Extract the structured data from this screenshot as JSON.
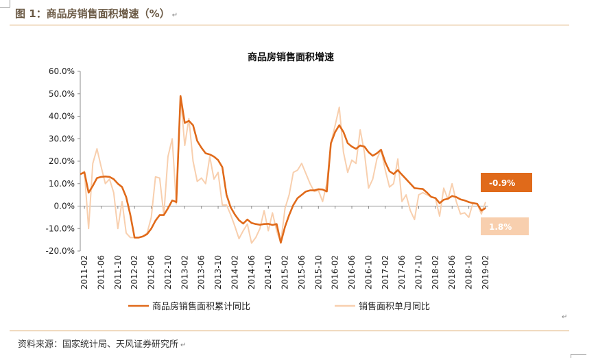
{
  "figure_title": "图 1：商品房销售面积增速（%）",
  "return_mark": "↵",
  "source": "资料来源：国家统计局、天风证券研究所",
  "colors": {
    "cumulative": "#e06a1a",
    "monthly": "#f8cfae",
    "accent_rule": "#d9a15e"
  },
  "chart_data": {
    "type": "line",
    "title": "商品房销售面积增速",
    "xlabel": "",
    "ylabel": "",
    "ylim": [
      -20,
      60
    ],
    "yticks": [
      "60.0%",
      "50.0%",
      "40.0%",
      "30.0%",
      "20.0%",
      "10.0%",
      "0.0%",
      "-10.0%",
      "-20.0%"
    ],
    "xtick_labels": [
      "2011-02",
      "2011-06",
      "2011-10",
      "2012-02",
      "2012-06",
      "2012-10",
      "2013-02",
      "2013-06",
      "2013-10",
      "2014-02",
      "2014-06",
      "2014-10",
      "2015-02",
      "2015-06",
      "2015-10",
      "2016-02",
      "2016-06",
      "2016-10",
      "2017-02",
      "2017-06",
      "2017-10",
      "2018-02",
      "2018-06",
      "2018-10",
      "2019-02"
    ],
    "grid": false,
    "legend_position": "bottom",
    "series": [
      {
        "name": "商品房销售面积累计同比",
        "values": [
          [
            2011.083,
            14.2
          ],
          [
            2011.167,
            15.0
          ],
          [
            2011.25,
            6.0
          ],
          [
            2011.333,
            9.0
          ],
          [
            2011.417,
            12.5
          ],
          [
            2011.5,
            13.0
          ],
          [
            2011.583,
            13.2
          ],
          [
            2011.667,
            13.0
          ],
          [
            2011.75,
            12.0
          ],
          [
            2011.833,
            10.0
          ],
          [
            2011.917,
            8.5
          ],
          [
            2012.0,
            4.0
          ],
          [
            2012.083,
            -4.0
          ],
          [
            2012.167,
            -14.0
          ],
          [
            2012.25,
            -14.0
          ],
          [
            2012.333,
            -13.5
          ],
          [
            2012.417,
            -12.5
          ],
          [
            2012.5,
            -10.0
          ],
          [
            2012.583,
            -6.5
          ],
          [
            2012.667,
            -4.0
          ],
          [
            2012.75,
            -4.0
          ],
          [
            2012.833,
            -1.0
          ],
          [
            2012.917,
            2.5
          ],
          [
            2013.0,
            1.8
          ],
          [
            2013.083,
            49.0
          ],
          [
            2013.167,
            37.0
          ],
          [
            2013.25,
            38.0
          ],
          [
            2013.333,
            36.0
          ],
          [
            2013.417,
            29.0
          ],
          [
            2013.5,
            26.0
          ],
          [
            2013.583,
            23.5
          ],
          [
            2013.667,
            23.0
          ],
          [
            2013.75,
            22.0
          ],
          [
            2013.833,
            20.5
          ],
          [
            2013.917,
            17.3
          ],
          [
            2014.0,
            5.0
          ],
          [
            2014.083,
            -0.5
          ],
          [
            2014.167,
            -3.8
          ],
          [
            2014.25,
            -6.3
          ],
          [
            2014.333,
            -7.8
          ],
          [
            2014.417,
            -6.0
          ],
          [
            2014.5,
            -7.5
          ],
          [
            2014.583,
            -8.0
          ],
          [
            2014.667,
            -8.3
          ],
          [
            2014.75,
            -8.0
          ],
          [
            2014.833,
            -7.9
          ],
          [
            2014.917,
            -8.4
          ],
          [
            2015.0,
            -8.0
          ],
          [
            2015.083,
            -16.3
          ],
          [
            2015.167,
            -9.2
          ],
          [
            2015.25,
            -4.0
          ],
          [
            2015.333,
            0.5
          ],
          [
            2015.417,
            3.5
          ],
          [
            2015.5,
            5.0
          ],
          [
            2015.583,
            6.5
          ],
          [
            2015.667,
            7.0
          ],
          [
            2015.75,
            7.0
          ],
          [
            2015.833,
            7.5
          ],
          [
            2015.917,
            7.4
          ],
          [
            2016.0,
            6.5
          ],
          [
            2016.083,
            28.0
          ],
          [
            2016.167,
            33.0
          ],
          [
            2016.25,
            36.0
          ],
          [
            2016.333,
            33.0
          ],
          [
            2016.417,
            28.0
          ],
          [
            2016.5,
            26.5
          ],
          [
            2016.583,
            25.5
          ],
          [
            2016.667,
            27.0
          ],
          [
            2016.75,
            26.5
          ],
          [
            2016.833,
            24.0
          ],
          [
            2016.917,
            22.4
          ],
          [
            2017.0,
            23.5
          ],
          [
            2017.083,
            25.1
          ],
          [
            2017.167,
            19.5
          ],
          [
            2017.25,
            15.5
          ],
          [
            2017.333,
            14.3
          ],
          [
            2017.417,
            16.0
          ],
          [
            2017.5,
            14.0
          ],
          [
            2017.583,
            12.0
          ],
          [
            2017.667,
            10.0
          ],
          [
            2017.75,
            8.0
          ],
          [
            2017.833,
            7.8
          ],
          [
            2017.917,
            7.6
          ],
          [
            2018.0,
            6.0
          ],
          [
            2018.083,
            4.1
          ],
          [
            2018.167,
            3.6
          ],
          [
            2018.25,
            1.3
          ],
          [
            2018.333,
            2.8
          ],
          [
            2018.417,
            3.3
          ],
          [
            2018.5,
            4.5
          ],
          [
            2018.583,
            4.0
          ],
          [
            2018.667,
            3.0
          ],
          [
            2018.75,
            2.5
          ],
          [
            2018.833,
            1.8
          ],
          [
            2018.917,
            1.3
          ],
          [
            2019.0,
            1.0
          ],
          [
            2019.083,
            -2.0
          ],
          [
            2019.167,
            -0.9
          ]
        ]
      },
      {
        "name": "销售面积单月同比",
        "values": [
          [
            2011.083,
            14.2
          ],
          [
            2011.167,
            15.5
          ],
          [
            2011.25,
            -10.0
          ],
          [
            2011.333,
            19.0
          ],
          [
            2011.417,
            25.5
          ],
          [
            2011.5,
            17.5
          ],
          [
            2011.583,
            10.0
          ],
          [
            2011.667,
            12.0
          ],
          [
            2011.75,
            6.0
          ],
          [
            2011.833,
            -10.0
          ],
          [
            2011.917,
            2.0
          ],
          [
            2012.0,
            -12.0
          ],
          [
            2012.083,
            -14.0
          ],
          [
            2012.167,
            -14.0
          ],
          [
            2012.25,
            -14.0
          ],
          [
            2012.333,
            -13.5
          ],
          [
            2012.417,
            -12.0
          ],
          [
            2012.5,
            -5.0
          ],
          [
            2012.583,
            13.0
          ],
          [
            2012.667,
            12.5
          ],
          [
            2012.75,
            -4.0
          ],
          [
            2012.833,
            22.0
          ],
          [
            2012.917,
            30.0
          ],
          [
            2013.0,
            1.0
          ],
          [
            2013.083,
            49.0
          ],
          [
            2013.167,
            27.0
          ],
          [
            2013.25,
            39.0
          ],
          [
            2013.333,
            20.0
          ],
          [
            2013.417,
            11.0
          ],
          [
            2013.5,
            12.5
          ],
          [
            2013.583,
            10.0
          ],
          [
            2013.667,
            22.0
          ],
          [
            2013.75,
            12.0
          ],
          [
            2013.833,
            15.0
          ],
          [
            2013.917,
            0.5
          ],
          [
            2014.0,
            0.5
          ],
          [
            2014.083,
            -3.8
          ],
          [
            2014.167,
            -9.0
          ],
          [
            2014.25,
            -14.5
          ],
          [
            2014.333,
            -11.0
          ],
          [
            2014.417,
            -8.0
          ],
          [
            2014.5,
            -16.5
          ],
          [
            2014.583,
            -14.0
          ],
          [
            2014.667,
            -10.0
          ],
          [
            2014.75,
            -2.0
          ],
          [
            2014.833,
            -11.0
          ],
          [
            2014.917,
            -3.0
          ],
          [
            2015.0,
            -11.0
          ],
          [
            2015.083,
            -16.3
          ],
          [
            2015.167,
            -1.0
          ],
          [
            2015.25,
            5.0
          ],
          [
            2015.333,
            15.0
          ],
          [
            2015.417,
            16.0
          ],
          [
            2015.5,
            19.0
          ],
          [
            2015.583,
            14.5
          ],
          [
            2015.667,
            10.0
          ],
          [
            2015.75,
            6.5
          ],
          [
            2015.833,
            7.0
          ],
          [
            2015.917,
            2.0
          ],
          [
            2016.0,
            10.0
          ],
          [
            2016.083,
            28.0
          ],
          [
            2016.167,
            36.0
          ],
          [
            2016.25,
            44.0
          ],
          [
            2016.333,
            24.0
          ],
          [
            2016.417,
            15.0
          ],
          [
            2016.5,
            20.5
          ],
          [
            2016.583,
            19.0
          ],
          [
            2016.667,
            34.0
          ],
          [
            2016.75,
            24.0
          ],
          [
            2016.833,
            8.0
          ],
          [
            2016.917,
            12.0
          ],
          [
            2017.0,
            21.0
          ],
          [
            2017.083,
            25.1
          ],
          [
            2017.167,
            16.0
          ],
          [
            2017.25,
            8.5
          ],
          [
            2017.333,
            10.0
          ],
          [
            2017.417,
            21.0
          ],
          [
            2017.5,
            2.0
          ],
          [
            2017.583,
            5.0
          ],
          [
            2017.667,
            -2.0
          ],
          [
            2017.75,
            -6.0
          ],
          [
            2017.833,
            5.0
          ],
          [
            2017.917,
            6.0
          ],
          [
            2018.0,
            5.0
          ],
          [
            2018.083,
            4.1
          ],
          [
            2018.167,
            3.5
          ],
          [
            2018.25,
            -4.5
          ],
          [
            2018.333,
            8.0
          ],
          [
            2018.417,
            3.0
          ],
          [
            2018.5,
            10.0
          ],
          [
            2018.583,
            2.0
          ],
          [
            2018.667,
            -3.5
          ],
          [
            2018.75,
            -3.0
          ],
          [
            2018.833,
            -5.0
          ],
          [
            2018.917,
            1.5
          ],
          [
            2019.0,
            1.0
          ],
          [
            2019.083,
            -3.5
          ],
          [
            2019.167,
            1.8
          ]
        ]
      }
    ],
    "annotations": [
      {
        "text": "-0.9%",
        "series": "商品房销售面积累计同比"
      },
      {
        "text": "1.8%",
        "series": "销售面积单月同比"
      }
    ]
  }
}
